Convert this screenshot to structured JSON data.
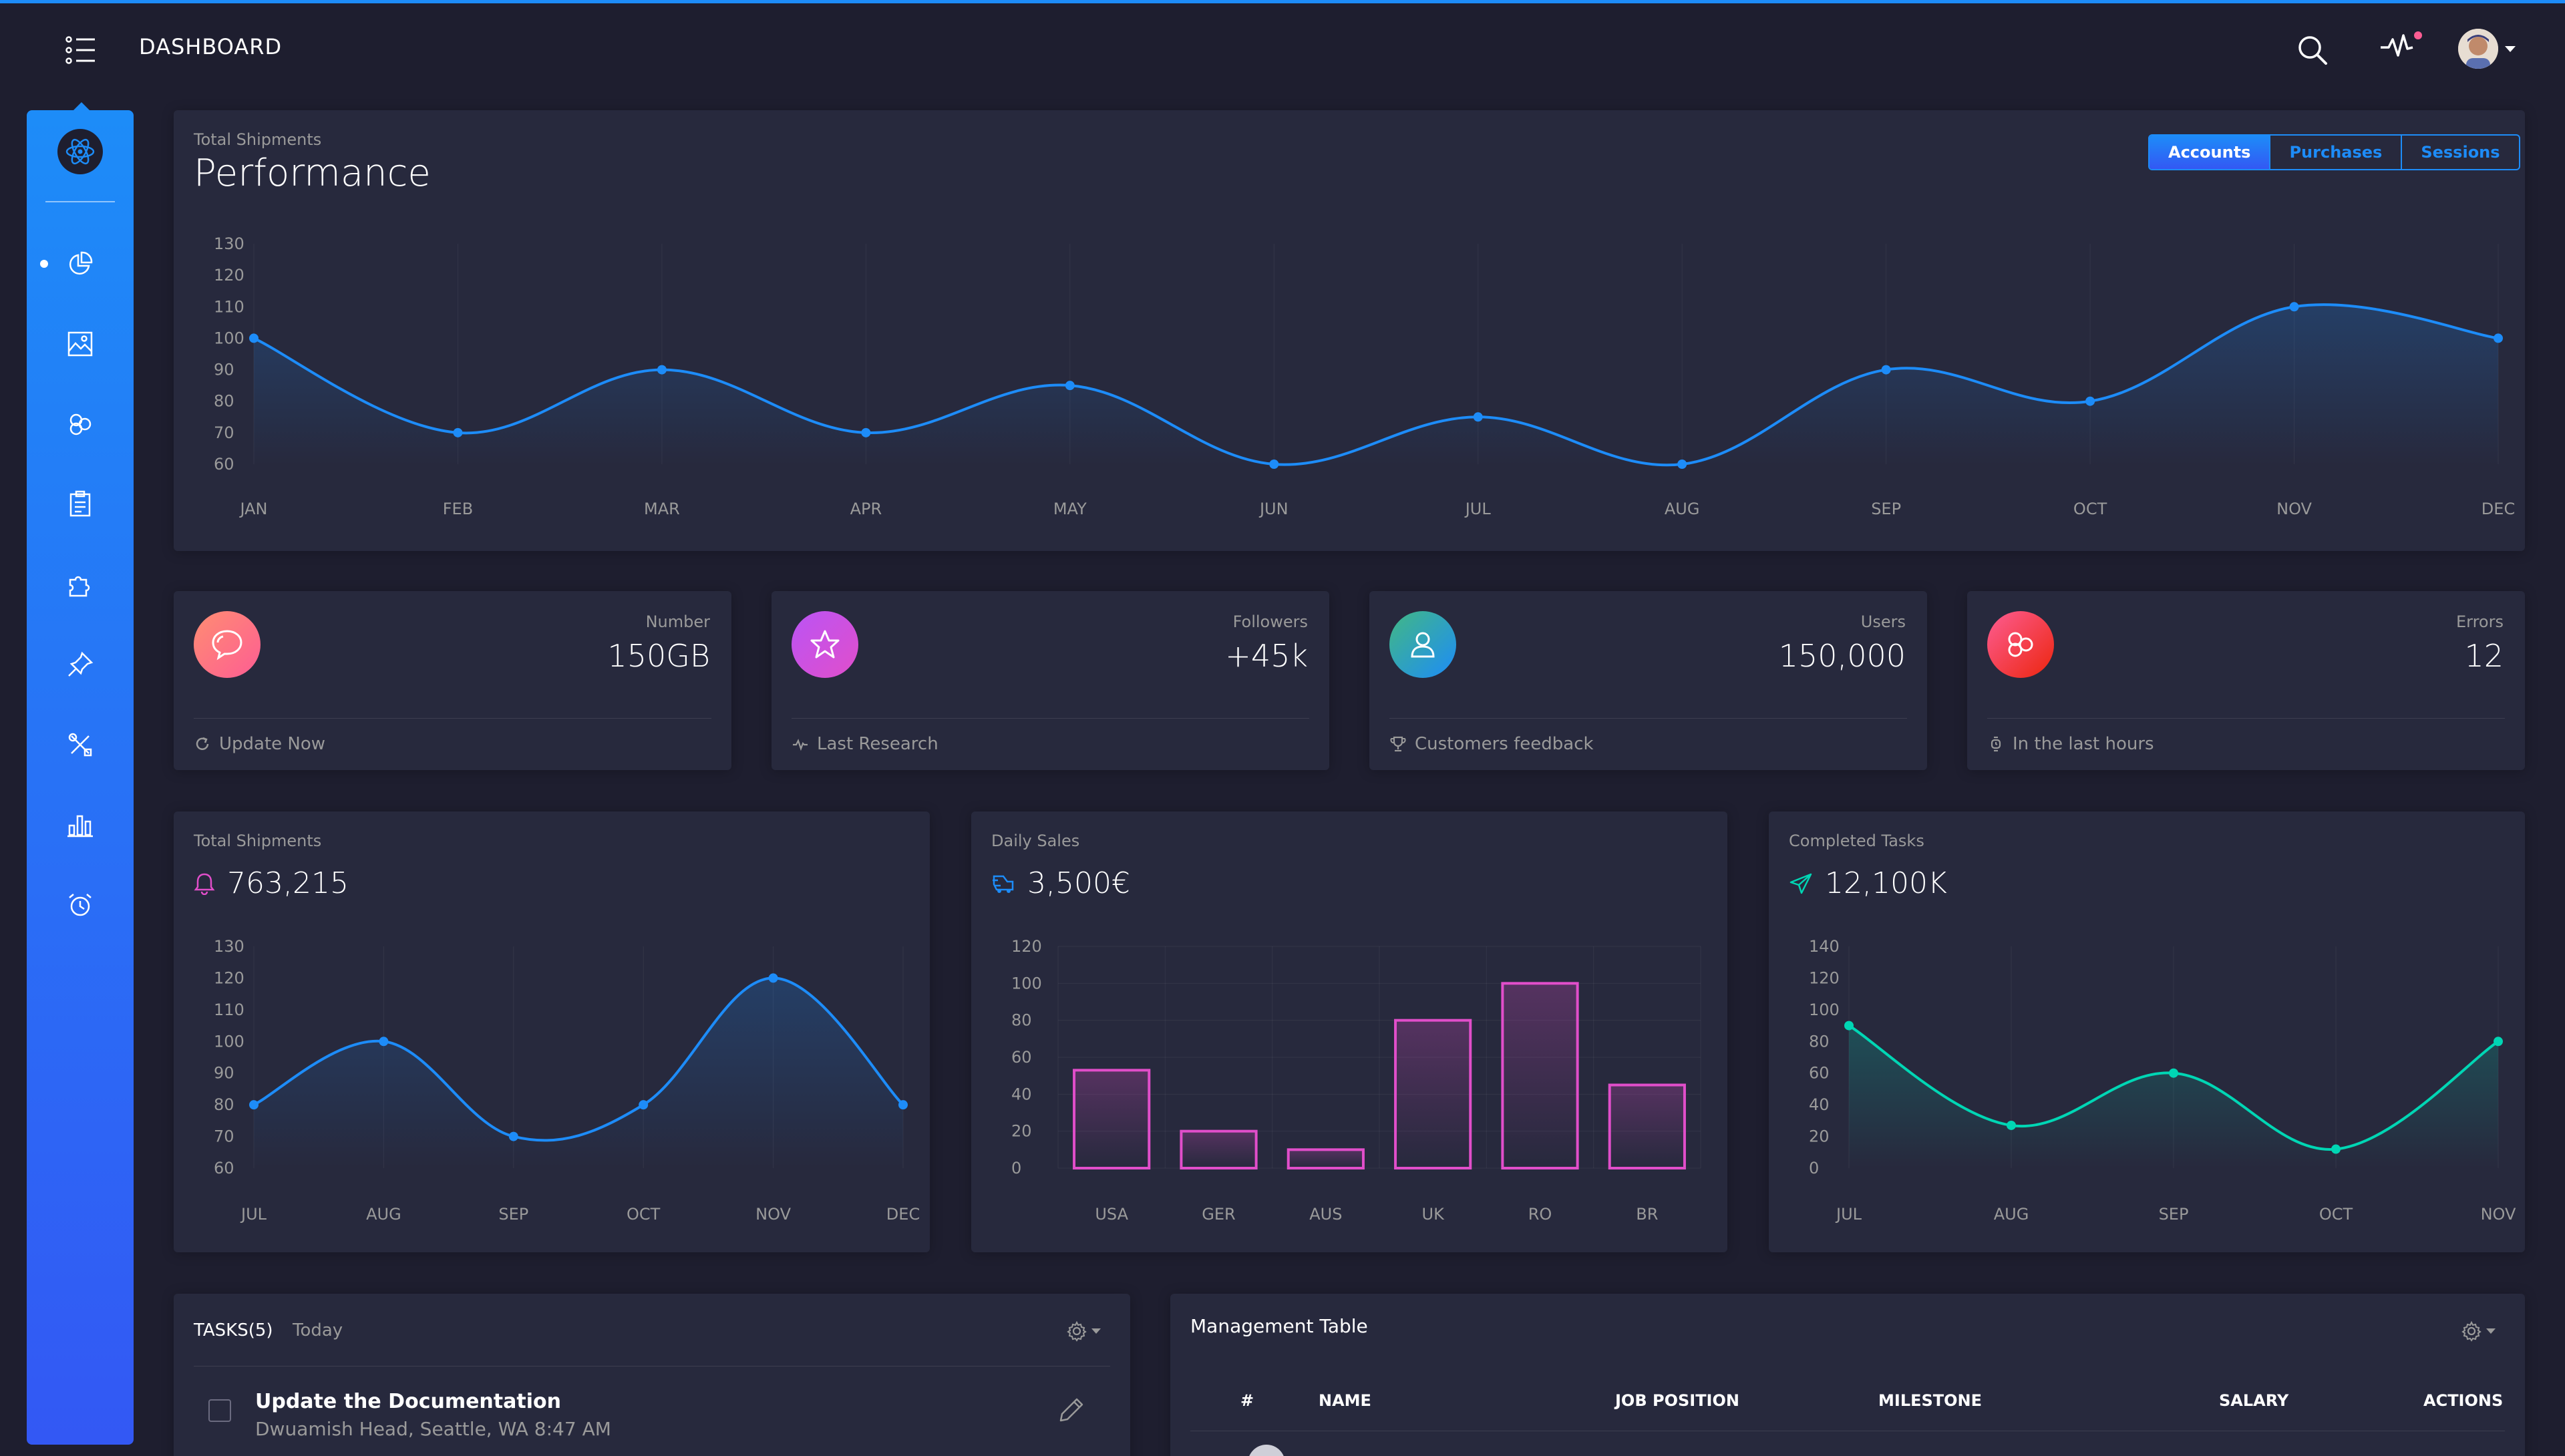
{
  "header": {
    "title": "DASHBOARD"
  },
  "performance": {
    "category": "Total Shipments",
    "title": "Performance",
    "tabs": [
      "Accounts",
      "Purchases",
      "Sessions"
    ],
    "active_tab": "Accounts"
  },
  "stats": [
    {
      "label": "Number",
      "value": "150GB",
      "footer": "Update Now",
      "icon": "chat-bubble-icon",
      "footer_icon": "refresh-icon",
      "color1": "#ff8d72",
      "color2": "#fd5d93"
    },
    {
      "label": "Followers",
      "value": "+45k",
      "footer": "Last Research",
      "icon": "star-icon",
      "footer_icon": "pulse-icon",
      "color1": "#ba54f5",
      "color2": "#e14eca"
    },
    {
      "label": "Users",
      "value": "150,000",
      "footer": "Customers feedback",
      "icon": "user-icon",
      "footer_icon": "trophy-icon",
      "color1": "#42b883",
      "color2": "#1d8cf8"
    },
    {
      "label": "Errors",
      "value": "12",
      "footer": "In the last hours",
      "icon": "molecule-icon",
      "footer_icon": "watch-icon",
      "color1": "#fd5d93",
      "color2": "#ec250d"
    }
  ],
  "mini_charts": [
    {
      "category": "Total Shipments",
      "value": "763,215",
      "icon": "bell-icon"
    },
    {
      "category": "Daily Sales",
      "value": "3,500€",
      "icon": "delivery-icon"
    },
    {
      "category": "Completed Tasks",
      "value": "12,100K",
      "icon": "send-icon"
    }
  ],
  "tasks": {
    "title": "TASKS(5)",
    "subtitle": "Today",
    "items": [
      {
        "title": "Update the Documentation",
        "subtitle": "Dwuamish Head, Seattle, WA 8:47 AM"
      }
    ]
  },
  "table": {
    "title": "Management Table",
    "columns": [
      "#",
      "NAME",
      "JOB POSITION",
      "MILESTONE",
      "SALARY",
      "ACTIONS"
    ]
  },
  "colors": {
    "background": "#1e1e2f",
    "card": "#27293d",
    "primary": "#1d8cf8",
    "info": "#3358f4",
    "pink": "#e14eca",
    "teal": "#00d6b4"
  },
  "chart_data": [
    {
      "type": "line",
      "title": "Performance",
      "categories": [
        "JAN",
        "FEB",
        "MAR",
        "APR",
        "MAY",
        "JUN",
        "JUL",
        "AUG",
        "SEP",
        "OCT",
        "NOV",
        "DEC"
      ],
      "series": [
        {
          "values": [
            100,
            70,
            90,
            70,
            85,
            60,
            75,
            60,
            90,
            80,
            110,
            100
          ]
        }
      ],
      "yticks": [
        60,
        70,
        80,
        90,
        100,
        110,
        120,
        130
      ],
      "ylim": [
        60,
        130
      ],
      "grid": true,
      "color": "#1d8cf8"
    },
    {
      "type": "line",
      "title": "763,215",
      "categories": [
        "JUL",
        "AUG",
        "SEP",
        "OCT",
        "NOV",
        "DEC"
      ],
      "series": [
        {
          "values": [
            80,
            100,
            70,
            80,
            120,
            80
          ]
        }
      ],
      "yticks": [
        60,
        70,
        80,
        90,
        100,
        110,
        120,
        130
      ],
      "ylim": [
        60,
        130
      ],
      "grid": true,
      "color": "#1d8cf8"
    },
    {
      "type": "bar",
      "title": "3,500€",
      "categories": [
        "USA",
        "GER",
        "AUS",
        "UK",
        "RO",
        "BR"
      ],
      "values": [
        53,
        20,
        10,
        80,
        100,
        45
      ],
      "yticks": [
        0,
        20,
        40,
        60,
        80,
        100,
        120
      ],
      "ylim": [
        0,
        120
      ],
      "grid": true,
      "color": "#e14eca"
    },
    {
      "type": "line",
      "title": "12,100K",
      "categories": [
        "JUL",
        "AUG",
        "SEP",
        "OCT",
        "NOV"
      ],
      "series": [
        {
          "values": [
            90,
            27,
            60,
            12,
            80
          ]
        }
      ],
      "yticks": [
        0,
        20,
        40,
        60,
        80,
        100,
        120,
        140
      ],
      "ylim": [
        0,
        140
      ],
      "grid": true,
      "color": "#00d6b4"
    }
  ]
}
